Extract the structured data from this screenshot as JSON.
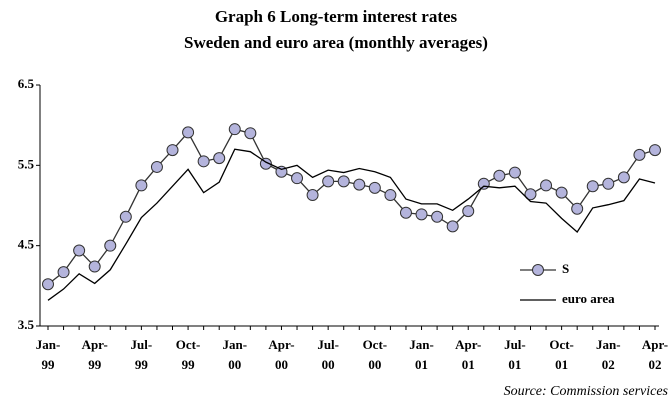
{
  "chart_data": {
    "type": "line",
    "title": "Graph 6 Long-term interest rates",
    "subtitle": "Sweden and euro area (monthly averages)",
    "source": "Source: Commission services",
    "categories": [
      "Jan-99",
      null,
      null,
      "Apr-99",
      null,
      null,
      "Jul-99",
      null,
      null,
      "Oct-99",
      null,
      null,
      "Jan-00",
      null,
      null,
      "Apr-00",
      null,
      null,
      "Jul-00",
      null,
      null,
      "Oct-00",
      null,
      null,
      "Jan-01",
      null,
      null,
      "Apr-01",
      null,
      null,
      "Jul-01",
      null,
      null,
      "Oct-01",
      null,
      null,
      "Jan-02",
      null,
      null,
      "Apr-02"
    ],
    "series": [
      {
        "name": "S",
        "color": "#333333",
        "marker_color": "#b4b4dc",
        "marker": true,
        "values": [
          4.02,
          4.17,
          4.44,
          4.24,
          4.5,
          4.86,
          5.25,
          5.48,
          5.69,
          5.91,
          5.55,
          5.59,
          5.95,
          5.9,
          5.52,
          5.42,
          5.34,
          5.13,
          5.3,
          5.3,
          5.26,
          5.22,
          5.13,
          4.91,
          4.89,
          4.86,
          4.74,
          4.93,
          5.27,
          5.37,
          5.41,
          5.14,
          5.25,
          5.16,
          4.96,
          5.24,
          5.27,
          5.35,
          5.63,
          5.69
        ]
      },
      {
        "name": "euro area",
        "color": "#000000",
        "marker": false,
        "values": [
          3.82,
          3.96,
          4.15,
          4.03,
          4.2,
          4.52,
          4.85,
          5.03,
          5.24,
          5.45,
          5.16,
          5.29,
          5.7,
          5.67,
          5.54,
          5.45,
          5.5,
          5.35,
          5.44,
          5.41,
          5.46,
          5.42,
          5.35,
          5.08,
          5.02,
          5.02,
          4.94,
          5.08,
          5.24,
          5.22,
          5.24,
          5.05,
          5.03,
          4.84,
          4.67,
          4.97,
          5.01,
          5.06,
          5.33,
          5.28
        ]
      }
    ],
    "ylim": [
      3.5,
      6.5
    ],
    "yticks": [
      3.5,
      4.5,
      5.5,
      6.5
    ],
    "grid": false,
    "legend": "lower right"
  }
}
